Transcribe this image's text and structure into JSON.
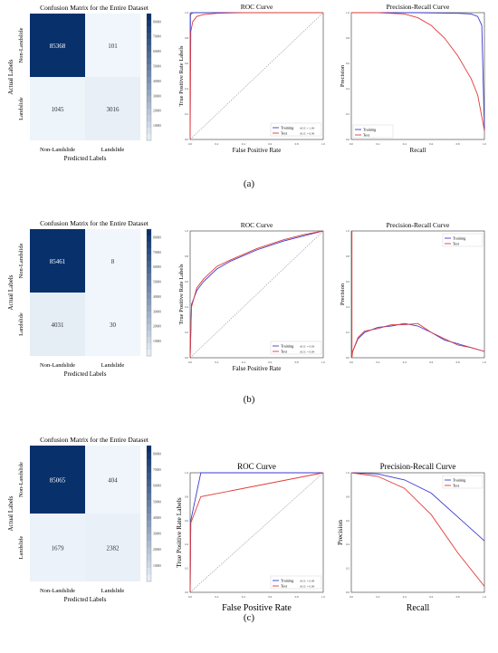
{
  "panels": [
    {
      "label": "(a)",
      "cm": {
        "title": "Confusion Matrix for the Entire Dataset",
        "xlabel": "Predicted Labels",
        "ylabel": "Actual Labels",
        "row_labels": [
          "Non-Landslide",
          "Landslide"
        ],
        "col_labels": [
          "Non-Landslide",
          "Landslide"
        ],
        "cells": [
          [
            "85368",
            "101"
          ],
          [
            "1045",
            "3016"
          ]
        ],
        "values": [
          [
            85368,
            101
          ],
          [
            1045,
            3016
          ]
        ],
        "colorbar_ticks": [
          "80000",
          "70000",
          "60000",
          "50000",
          "40000",
          "30000",
          "20000",
          "10000"
        ]
      },
      "roc": {
        "title": "ROC Curve",
        "xlabel": "False Positive Rate",
        "ylabel": "True Positive Rate Labels",
        "legend": [
          {
            "name": "Training",
            "auc": "AUC = 1.00",
            "color": "#3b3bd0"
          },
          {
            "name": "Test",
            "auc": "AUC = 0.99",
            "color": "#e03a3a"
          }
        ]
      },
      "pr": {
        "title": "Precision-Recall Curve",
        "xlabel": "Recall",
        "ylabel": "Precision",
        "legend": [
          {
            "name": "Training",
            "color": "#3b3bd0"
          },
          {
            "name": "Test",
            "color": "#e03a3a"
          }
        ]
      }
    },
    {
      "label": "(b)",
      "cm": {
        "title": "Confusion Matrix for the Entire Dataset",
        "xlabel": "Predicted Labels",
        "ylabel": "Actual Labels",
        "row_labels": [
          "Non-Landslide",
          "Landslide"
        ],
        "col_labels": [
          "Non-Landslide",
          "Landslide"
        ],
        "cells": [
          [
            "85461",
            "8"
          ],
          [
            "4031",
            "30"
          ]
        ],
        "values": [
          [
            85461,
            8
          ],
          [
            4031,
            30
          ]
        ],
        "colorbar_ticks": [
          "80000",
          "70000",
          "60000",
          "50000",
          "40000",
          "30000",
          "20000",
          "10000"
        ]
      },
      "roc": {
        "title": "ROC Curve",
        "xlabel": "False Positive Rate",
        "ylabel": "True Positive Rate Labels",
        "legend": [
          {
            "name": "Training",
            "auc": "AUC = 0.83",
            "color": "#3b3bd0"
          },
          {
            "name": "Test",
            "auc": "AUC = 0.84",
            "color": "#e03a3a"
          }
        ]
      },
      "pr": {
        "title": "Precision-Recall Curve",
        "xlabel": "",
        "ylabel": "Precision",
        "legend": [
          {
            "name": "Training",
            "color": "#3b3bd0"
          },
          {
            "name": "Test",
            "color": "#e03a3a"
          }
        ]
      }
    },
    {
      "label": "(c)",
      "cm": {
        "title": "Confusion Matrix for the Entire Dataset",
        "xlabel": "Predicted Labels",
        "ylabel": "Actual Labels",
        "row_labels": [
          "Non-Landslide",
          "Landslide"
        ],
        "col_labels": [
          "Non-Landslide",
          "Landslide"
        ],
        "cells": [
          [
            "85065",
            "404"
          ],
          [
            "1679",
            "2382"
          ]
        ],
        "values": [
          [
            85065,
            404
          ],
          [
            1679,
            2382
          ]
        ],
        "colorbar_ticks": [
          "80000",
          "70000",
          "60000",
          "50000",
          "40000",
          "30000",
          "20000",
          "10000"
        ]
      },
      "roc": {
        "title": "ROC Curve",
        "xlabel": "False Positive Rate",
        "ylabel": "True Positive Rate Labels",
        "legend": [
          {
            "name": "Training",
            "auc": "AUC = 0.99",
            "color": "#3b3bd0"
          },
          {
            "name": "Test",
            "auc": "AUC = 0.90",
            "color": "#e03a3a"
          }
        ]
      },
      "pr": {
        "title": "Precision-Recall Curve",
        "xlabel": "Recall",
        "ylabel": "Precision",
        "legend": [
          {
            "name": "Training",
            "color": "#3b3bd0"
          },
          {
            "name": "Test",
            "color": "#e03a3a"
          }
        ]
      }
    }
  ],
  "chart_data": [
    {
      "type": "heatmap",
      "panel": "(a)",
      "title": "Confusion Matrix for the Entire Dataset",
      "xlabel": "Predicted Labels",
      "ylabel": "Actual Labels",
      "x_categories": [
        "Non-Landslide",
        "Landslide"
      ],
      "y_categories": [
        "Non-Landslide",
        "Landslide"
      ],
      "values": [
        [
          85368,
          101
        ],
        [
          1045,
          3016
        ]
      ]
    },
    {
      "type": "line",
      "panel": "(a)",
      "title": "ROC Curve",
      "xlabel": "False Positive Rate",
      "ylabel": "True Positive Rate Labels",
      "xlim": [
        0,
        1
      ],
      "ylim": [
        0,
        1
      ],
      "series": [
        {
          "name": "Training",
          "x": [
            0,
            0.002,
            0.01,
            0.03,
            0.1,
            0.3,
            1
          ],
          "y": [
            0,
            0.98,
            0.995,
            1.0,
            1.0,
            1.0,
            1.0
          ]
        },
        {
          "name": "Test",
          "x": [
            0,
            0.005,
            0.02,
            0.05,
            0.1,
            0.2,
            0.4,
            1
          ],
          "y": [
            0,
            0.85,
            0.93,
            0.97,
            0.985,
            0.995,
            1.0,
            1.0
          ]
        },
        {
          "name": "",
          "x": [
            0,
            1
          ],
          "y": [
            0,
            1
          ]
        }
      ]
    },
    {
      "type": "line",
      "panel": "(a)",
      "title": "Precision-Recall Curve",
      "xlabel": "Recall",
      "ylabel": "Precision",
      "xlim": [
        0,
        1
      ],
      "ylim": [
        0,
        1
      ],
      "series": [
        {
          "name": "Training",
          "x": [
            0,
            0.2,
            0.5,
            0.8,
            0.9,
            0.95,
            0.98,
            1.0
          ],
          "y": [
            1.0,
            1.0,
            1.0,
            0.995,
            0.99,
            0.97,
            0.9,
            0.07
          ]
        },
        {
          "name": "Test",
          "x": [
            0,
            0.2,
            0.4,
            0.5,
            0.6,
            0.7,
            0.8,
            0.9,
            0.95,
            1.0
          ],
          "y": [
            1.0,
            1.0,
            0.99,
            0.96,
            0.9,
            0.8,
            0.66,
            0.48,
            0.35,
            0.07
          ]
        }
      ]
    },
    {
      "type": "heatmap",
      "panel": "(b)",
      "title": "Confusion Matrix for the Entire Dataset",
      "xlabel": "Predicted Labels",
      "ylabel": "Actual Labels",
      "x_categories": [
        "Non-Landslide",
        "Landslide"
      ],
      "y_categories": [
        "Non-Landslide",
        "Landslide"
      ],
      "values": [
        [
          85461,
          8
        ],
        [
          4031,
          30
        ]
      ]
    },
    {
      "type": "line",
      "panel": "(b)",
      "title": "ROC Curve",
      "xlabel": "False Positive Rate",
      "ylabel": "True Positive Rate Labels",
      "xlim": [
        0,
        1
      ],
      "ylim": [
        0,
        1
      ],
      "series": [
        {
          "name": "Training",
          "x": [
            0,
            0.01,
            0.05,
            0.1,
            0.2,
            0.3,
            0.5,
            0.7,
            0.85,
            1.0
          ],
          "y": [
            0,
            0.42,
            0.53,
            0.6,
            0.7,
            0.76,
            0.85,
            0.92,
            0.96,
            1.0
          ]
        },
        {
          "name": "Test",
          "x": [
            0,
            0.01,
            0.05,
            0.1,
            0.2,
            0.3,
            0.5,
            0.7,
            0.85,
            1.0
          ],
          "y": [
            0,
            0.4,
            0.55,
            0.62,
            0.72,
            0.77,
            0.86,
            0.93,
            0.97,
            1.0
          ]
        },
        {
          "name": "",
          "x": [
            0,
            1
          ],
          "y": [
            0,
            1
          ]
        }
      ]
    },
    {
      "type": "line",
      "panel": "(b)",
      "title": "Precision-Recall Curve",
      "xlabel": "",
      "ylabel": "Precision",
      "xlim": [
        0,
        1
      ],
      "ylim": [
        0,
        1
      ],
      "series": [
        {
          "name": "Training",
          "x": [
            0.01,
            0.05,
            0.1,
            0.2,
            0.3,
            0.4,
            0.5,
            0.6,
            0.7,
            0.8,
            0.9,
            1.0
          ],
          "y": [
            0.05,
            0.15,
            0.2,
            0.24,
            0.25,
            0.27,
            0.25,
            0.2,
            0.14,
            0.11,
            0.08,
            0.05
          ]
        },
        {
          "name": "Test",
          "x": [
            0.005,
            0.005,
            0.01,
            0.05,
            0.1,
            0.2,
            0.3,
            0.4,
            0.5,
            0.6,
            0.7,
            0.8,
            0.9,
            1.0
          ],
          "y": [
            1.0,
            0.0,
            0.05,
            0.16,
            0.21,
            0.23,
            0.26,
            0.26,
            0.27,
            0.2,
            0.15,
            0.1,
            0.08,
            0.05
          ]
        }
      ]
    },
    {
      "type": "heatmap",
      "panel": "(c)",
      "title": "Confusion Matrix for the Entire Dataset",
      "xlabel": "Predicted Labels",
      "ylabel": "Actual Labels",
      "x_categories": [
        "Non-Landslide",
        "Landslide"
      ],
      "y_categories": [
        "Non-Landslide",
        "Landslide"
      ],
      "values": [
        [
          85065,
          404
        ],
        [
          1679,
          2382
        ]
      ]
    },
    {
      "type": "line",
      "panel": "(c)",
      "title": "ROC Curve",
      "xlabel": "False Positive Rate",
      "ylabel": "True Positive Rate Labels",
      "xlim": [
        0,
        1
      ],
      "ylim": [
        0,
        1
      ],
      "series": [
        {
          "name": "Training",
          "x": [
            0,
            0.005,
            0.08,
            1.0
          ],
          "y": [
            0,
            0.6,
            1.0,
            1.0
          ]
        },
        {
          "name": "Test",
          "x": [
            0,
            0.005,
            0.08,
            1.0
          ],
          "y": [
            0,
            0.58,
            0.8,
            1.0
          ]
        },
        {
          "name": "",
          "x": [
            0,
            1
          ],
          "y": [
            0,
            1
          ]
        }
      ]
    },
    {
      "type": "line",
      "panel": "(c)",
      "title": "Precision-Recall Curve",
      "xlabel": "Recall",
      "ylabel": "Precision",
      "xlim": [
        0,
        1
      ],
      "ylim": [
        0,
        1
      ],
      "series": [
        {
          "name": "Training",
          "x": [
            0,
            0.2,
            0.4,
            0.6,
            0.8,
            1.0
          ],
          "y": [
            1.0,
            0.99,
            0.94,
            0.83,
            0.63,
            0.43
          ]
        },
        {
          "name": "Test",
          "x": [
            0,
            0.2,
            0.4,
            0.6,
            0.8,
            1.0
          ],
          "y": [
            1.0,
            0.97,
            0.87,
            0.65,
            0.33,
            0.05
          ]
        }
      ]
    }
  ]
}
